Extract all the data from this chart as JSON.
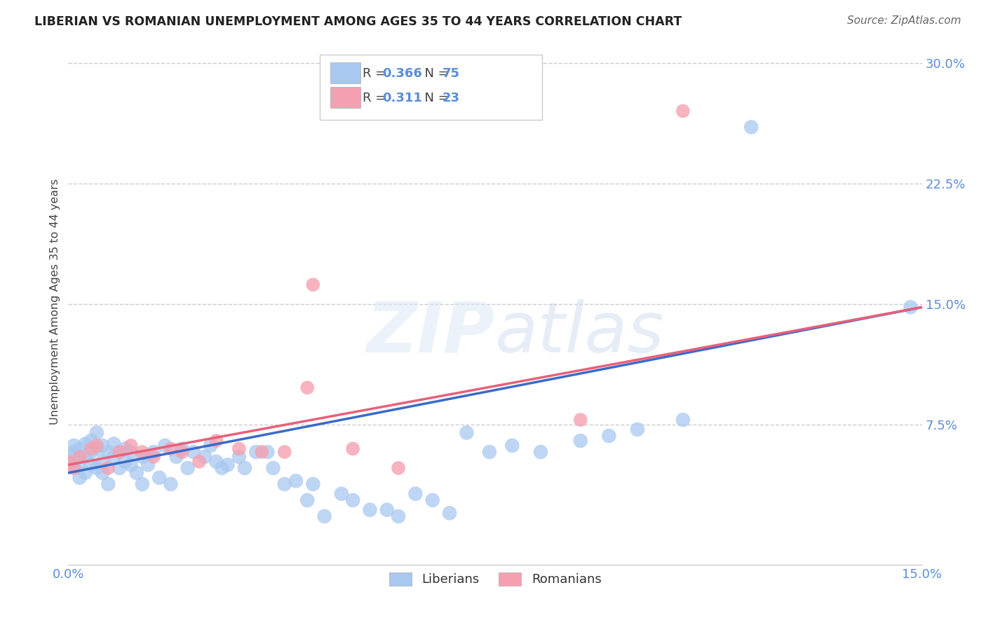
{
  "title": "LIBERIAN VS ROMANIAN UNEMPLOYMENT AMONG AGES 35 TO 44 YEARS CORRELATION CHART",
  "source": "Source: ZipAtlas.com",
  "ylabel": "Unemployment Among Ages 35 to 44 years",
  "r_liberian": "0.366",
  "n_liberian": "75",
  "r_romanian": "0.311",
  "n_romanian": "23",
  "liberian_color": "#a8c8f0",
  "romanian_color": "#f5a0b0",
  "liberian_line_color": "#3a6bc9",
  "romanian_line_color": "#e8607a",
  "watermark_zip": "ZIP",
  "watermark_atlas": "atlas",
  "background_color": "#ffffff",
  "xlim": [
    0.0,
    0.15
  ],
  "ylim": [
    -0.012,
    0.315
  ],
  "ytick_positions": [
    0.075,
    0.15,
    0.225,
    0.3
  ],
  "ytick_labels": [
    "7.5%",
    "15.0%",
    "22.5%",
    "30.0%"
  ],
  "lib_x": [
    0.0,
    0.0,
    0.001,
    0.001,
    0.001,
    0.002,
    0.002,
    0.002,
    0.003,
    0.003,
    0.003,
    0.004,
    0.004,
    0.004,
    0.005,
    0.005,
    0.005,
    0.006,
    0.006,
    0.006,
    0.007,
    0.007,
    0.008,
    0.008,
    0.009,
    0.009,
    0.01,
    0.01,
    0.011,
    0.011,
    0.012,
    0.013,
    0.013,
    0.014,
    0.015,
    0.016,
    0.017,
    0.018,
    0.019,
    0.02,
    0.021,
    0.022,
    0.024,
    0.025,
    0.026,
    0.027,
    0.028,
    0.03,
    0.031,
    0.033,
    0.035,
    0.036,
    0.038,
    0.04,
    0.042,
    0.043,
    0.045,
    0.048,
    0.05,
    0.053,
    0.056,
    0.058,
    0.061,
    0.064,
    0.067,
    0.07,
    0.074,
    0.078,
    0.083,
    0.09,
    0.095,
    0.1,
    0.108,
    0.12,
    0.148
  ],
  "lib_y": [
    0.055,
    0.05,
    0.048,
    0.058,
    0.062,
    0.042,
    0.052,
    0.06,
    0.045,
    0.055,
    0.063,
    0.05,
    0.058,
    0.065,
    0.048,
    0.06,
    0.07,
    0.052,
    0.062,
    0.045,
    0.058,
    0.038,
    0.055,
    0.063,
    0.048,
    0.058,
    0.052,
    0.06,
    0.05,
    0.058,
    0.045,
    0.055,
    0.038,
    0.05,
    0.058,
    0.042,
    0.062,
    0.038,
    0.055,
    0.06,
    0.048,
    0.058,
    0.055,
    0.062,
    0.052,
    0.048,
    0.05,
    0.055,
    0.048,
    0.058,
    0.058,
    0.048,
    0.038,
    0.04,
    0.028,
    0.038,
    0.018,
    0.032,
    0.028,
    0.022,
    0.022,
    0.018,
    0.032,
    0.028,
    0.02,
    0.07,
    0.058,
    0.062,
    0.058,
    0.065,
    0.068,
    0.072,
    0.078,
    0.26,
    0.148
  ],
  "rom_x": [
    0.0,
    0.001,
    0.002,
    0.004,
    0.005,
    0.007,
    0.009,
    0.011,
    0.013,
    0.015,
    0.018,
    0.02,
    0.023,
    0.026,
    0.03,
    0.034,
    0.038,
    0.043,
    0.05,
    0.058,
    0.042,
    0.09,
    0.108
  ],
  "rom_y": [
    0.052,
    0.048,
    0.055,
    0.06,
    0.062,
    0.048,
    0.058,
    0.062,
    0.058,
    0.055,
    0.06,
    0.058,
    0.052,
    0.065,
    0.06,
    0.058,
    0.058,
    0.162,
    0.06,
    0.048,
    0.098,
    0.078,
    0.27
  ]
}
